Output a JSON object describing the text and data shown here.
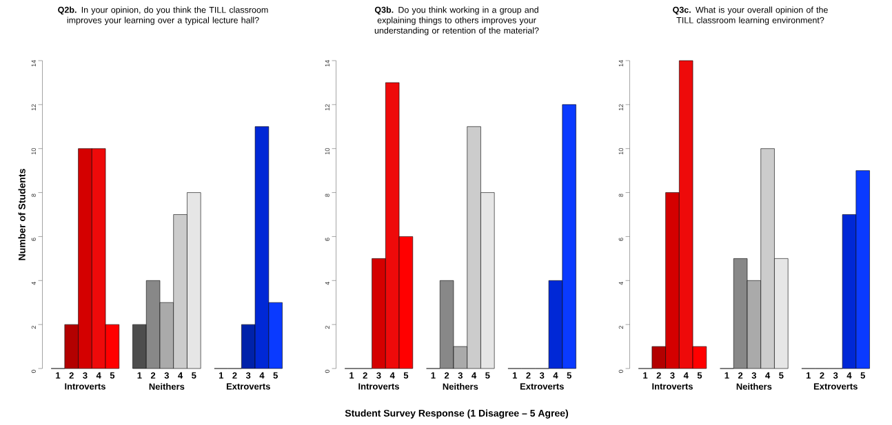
{
  "chart_data": [
    {
      "type": "bar",
      "title": "**Q2b.** In your opinion, do you think the TILL classroom improves your learning over a typical lecture hall?",
      "ylabel": "Number of Students",
      "categories": [
        "1",
        "2",
        "3",
        "4",
        "5",
        "1",
        "2",
        "3",
        "4",
        "5",
        "1",
        "2",
        "3",
        "4",
        "5"
      ],
      "series": [
        {
          "name": "Introverts",
          "values": [
            0,
            2,
            10,
            10,
            2,
            null,
            null,
            null,
            null,
            null,
            null,
            null,
            null,
            null,
            null
          ],
          "colors": [
            "#8b0000",
            "#b30000",
            "#d40000",
            "#ee0a0a",
            "#ff0000",
            null,
            null,
            null,
            null,
            null,
            null,
            null,
            null,
            null,
            null
          ]
        },
        {
          "name": "Neithers",
          "values": [
            null,
            null,
            null,
            null,
            null,
            2,
            4,
            3,
            7,
            8,
            null,
            null,
            null,
            null,
            null
          ],
          "colors": [
            null,
            null,
            null,
            null,
            null,
            "#4d4d4d",
            "#888888",
            "#aaaaaa",
            "#cccccc",
            "#e6e6e6",
            null,
            null,
            null,
            null,
            null
          ]
        },
        {
          "name": "Extroverts",
          "values": [
            null,
            null,
            null,
            null,
            null,
            null,
            null,
            null,
            null,
            null,
            0,
            0,
            2,
            11,
            3
          ],
          "colors": [
            null,
            null,
            null,
            null,
            null,
            null,
            null,
            null,
            null,
            null,
            "#001070",
            "#0020a0",
            "#0022aa",
            "#0028d6",
            "#0a3aff"
          ]
        }
      ],
      "ylim": [
        0,
        14
      ],
      "yticks": [
        0,
        2,
        4,
        6,
        8,
        10,
        12,
        14
      ]
    },
    {
      "type": "bar",
      "title": "**Q3b.** Do you think working in a group and explaining things to others improves your understanding or retention of the material?",
      "xlabel": "Student Survey Response (1 Disagree – 5 Agree)",
      "categories": [
        "1",
        "2",
        "3",
        "4",
        "5",
        "1",
        "2",
        "3",
        "4",
        "5",
        "1",
        "2",
        "3",
        "4",
        "5"
      ],
      "series": [
        {
          "name": "Introverts",
          "values": [
            0,
            0,
            5,
            13,
            6,
            null,
            null,
            null,
            null,
            null,
            null,
            null,
            null,
            null,
            null
          ],
          "colors": [
            "#8b0000",
            "#b30000",
            "#d40000",
            "#ee0a0a",
            "#ff0000",
            null,
            null,
            null,
            null,
            null,
            null,
            null,
            null,
            null,
            null
          ]
        },
        {
          "name": "Neithers",
          "values": [
            null,
            null,
            null,
            null,
            null,
            0,
            4,
            1,
            11,
            8,
            null,
            null,
            null,
            null,
            null
          ],
          "colors": [
            null,
            null,
            null,
            null,
            null,
            "#4d4d4d",
            "#888888",
            "#aaaaaa",
            "#cccccc",
            "#e6e6e6",
            null,
            null,
            null,
            null,
            null
          ]
        },
        {
          "name": "Extroverts",
          "values": [
            null,
            null,
            null,
            null,
            null,
            null,
            null,
            null,
            null,
            null,
            0,
            0,
            0,
            4,
            12
          ],
          "colors": [
            null,
            null,
            null,
            null,
            null,
            null,
            null,
            null,
            null,
            null,
            "#001070",
            "#0020a0",
            "#0022aa",
            "#0028d6",
            "#0a3aff"
          ]
        }
      ],
      "ylim": [
        0,
        14
      ],
      "yticks": [
        0,
        2,
        4,
        6,
        8,
        10,
        12,
        14
      ]
    },
    {
      "type": "bar",
      "title": "**Q3c.** What is your overall opinion of the TILL classroom learning environment?",
      "categories": [
        "1",
        "2",
        "3",
        "4",
        "5",
        "1",
        "2",
        "3",
        "4",
        "5",
        "1",
        "2",
        "3",
        "4",
        "5"
      ],
      "series": [
        {
          "name": "Introverts",
          "values": [
            0,
            1,
            8,
            14,
            1,
            null,
            null,
            null,
            null,
            null,
            null,
            null,
            null,
            null,
            null
          ],
          "colors": [
            "#8b0000",
            "#b30000",
            "#d40000",
            "#ee0a0a",
            "#ff0000",
            null,
            null,
            null,
            null,
            null,
            null,
            null,
            null,
            null,
            null
          ]
        },
        {
          "name": "Neithers",
          "values": [
            null,
            null,
            null,
            null,
            null,
            0,
            5,
            4,
            10,
            5,
            null,
            null,
            null,
            null,
            null
          ],
          "colors": [
            null,
            null,
            null,
            null,
            null,
            "#4d4d4d",
            "#888888",
            "#aaaaaa",
            "#cccccc",
            "#e6e6e6",
            null,
            null,
            null,
            null,
            null
          ]
        },
        {
          "name": "Extroverts",
          "values": [
            null,
            null,
            null,
            null,
            null,
            null,
            null,
            null,
            null,
            null,
            0,
            0,
            0,
            7,
            9
          ],
          "colors": [
            null,
            null,
            null,
            null,
            null,
            null,
            null,
            null,
            null,
            null,
            "#001070",
            "#0020a0",
            "#0022aa",
            "#0028d6",
            "#0a3aff"
          ]
        }
      ],
      "ylim": [
        0,
        14
      ],
      "yticks": [
        0,
        2,
        4,
        6,
        8,
        10,
        12,
        14
      ]
    }
  ]
}
